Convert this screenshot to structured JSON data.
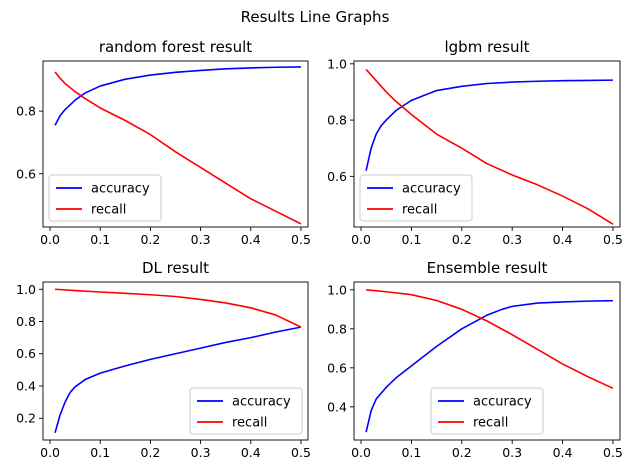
{
  "figure": {
    "suptitle": "Results Line Graphs"
  },
  "chart_data": [
    {
      "type": "line",
      "title": "random forest result",
      "xlabel": "",
      "ylabel": "",
      "xlim": [
        -0.014,
        0.514
      ],
      "ylim": [
        0.43,
        0.96
      ],
      "xticks": [
        0.0,
        0.1,
        0.2,
        0.3,
        0.4,
        0.5
      ],
      "xtick_labels": [
        "0.0",
        "0.1",
        "0.2",
        "0.3",
        "0.4",
        "0.5"
      ],
      "yticks": [
        0.6,
        0.8
      ],
      "ytick_labels": [
        "0.6",
        "0.8"
      ],
      "grid": false,
      "legend": "lower-left",
      "series": [
        {
          "name": "accuracy",
          "color": "#0000ff",
          "x": [
            0.01,
            0.02,
            0.03,
            0.05,
            0.07,
            0.1,
            0.15,
            0.2,
            0.25,
            0.3,
            0.35,
            0.4,
            0.45,
            0.5
          ],
          "y": [
            0.755,
            0.785,
            0.805,
            0.835,
            0.858,
            0.88,
            0.902,
            0.915,
            0.924,
            0.93,
            0.935,
            0.938,
            0.94,
            0.941
          ]
        },
        {
          "name": "recall",
          "color": "#ff0000",
          "x": [
            0.01,
            0.02,
            0.03,
            0.05,
            0.07,
            0.1,
            0.15,
            0.2,
            0.25,
            0.3,
            0.35,
            0.4,
            0.45,
            0.5
          ],
          "y": [
            0.925,
            0.905,
            0.888,
            0.862,
            0.84,
            0.81,
            0.77,
            0.725,
            0.67,
            0.62,
            0.57,
            0.52,
            0.48,
            0.44
          ]
        }
      ]
    },
    {
      "type": "line",
      "title": "lgbm result",
      "xlabel": "",
      "ylabel": "",
      "xlim": [
        -0.014,
        0.514
      ],
      "ylim": [
        0.42,
        1.01
      ],
      "xticks": [
        0.0,
        0.1,
        0.2,
        0.3,
        0.4,
        0.5
      ],
      "xtick_labels": [
        "0.0",
        "0.1",
        "0.2",
        "0.3",
        "0.4",
        "0.5"
      ],
      "yticks": [
        0.6,
        0.8,
        1.0
      ],
      "ytick_labels": [
        "0.6",
        "0.8",
        "1.0"
      ],
      "grid": false,
      "legend": "lower-left",
      "series": [
        {
          "name": "accuracy",
          "color": "#0000ff",
          "x": [
            0.01,
            0.02,
            0.03,
            0.04,
            0.05,
            0.07,
            0.1,
            0.15,
            0.2,
            0.25,
            0.3,
            0.35,
            0.4,
            0.45,
            0.5
          ],
          "y": [
            0.62,
            0.7,
            0.75,
            0.78,
            0.8,
            0.835,
            0.87,
            0.905,
            0.92,
            0.93,
            0.935,
            0.938,
            0.94,
            0.941,
            0.942
          ]
        },
        {
          "name": "recall",
          "color": "#ff0000",
          "x": [
            0.01,
            0.02,
            0.03,
            0.05,
            0.07,
            0.1,
            0.15,
            0.2,
            0.25,
            0.3,
            0.35,
            0.4,
            0.45,
            0.5
          ],
          "y": [
            0.98,
            0.96,
            0.94,
            0.9,
            0.865,
            0.82,
            0.75,
            0.7,
            0.645,
            0.605,
            0.57,
            0.53,
            0.485,
            0.43
          ]
        }
      ]
    },
    {
      "type": "line",
      "title": "DL result",
      "xlabel": "",
      "ylabel": "",
      "xlim": [
        -0.014,
        0.514
      ],
      "ylim": [
        0.065,
        1.045
      ],
      "xticks": [
        0.0,
        0.1,
        0.2,
        0.3,
        0.4,
        0.5
      ],
      "xtick_labels": [
        "0.0",
        "0.1",
        "0.2",
        "0.3",
        "0.4",
        "0.5"
      ],
      "yticks": [
        0.2,
        0.4,
        0.6,
        0.8,
        1.0
      ],
      "ytick_labels": [
        "0.2",
        "0.4",
        "0.6",
        "0.8",
        "1.0"
      ],
      "grid": false,
      "legend": "lower-right",
      "series": [
        {
          "name": "accuracy",
          "color": "#0000ff",
          "x": [
            0.01,
            0.02,
            0.03,
            0.04,
            0.05,
            0.07,
            0.1,
            0.15,
            0.2,
            0.25,
            0.3,
            0.35,
            0.4,
            0.45,
            0.5
          ],
          "y": [
            0.11,
            0.22,
            0.3,
            0.36,
            0.395,
            0.44,
            0.48,
            0.525,
            0.565,
            0.6,
            0.635,
            0.67,
            0.7,
            0.735,
            0.765
          ]
        },
        {
          "name": "recall",
          "color": "#ff0000",
          "x": [
            0.01,
            0.05,
            0.1,
            0.15,
            0.2,
            0.25,
            0.3,
            0.35,
            0.4,
            0.45,
            0.5
          ],
          "y": [
            1.0,
            0.992,
            0.983,
            0.975,
            0.966,
            0.955,
            0.937,
            0.915,
            0.885,
            0.84,
            0.765
          ]
        }
      ]
    },
    {
      "type": "line",
      "title": "Ensemble result",
      "xlabel": "",
      "ylabel": "",
      "xlim": [
        -0.014,
        0.514
      ],
      "ylim": [
        0.23,
        1.04
      ],
      "xticks": [
        0.0,
        0.1,
        0.2,
        0.3,
        0.4,
        0.5
      ],
      "xtick_labels": [
        "0.0",
        "0.1",
        "0.2",
        "0.3",
        "0.4",
        "0.5"
      ],
      "yticks": [
        0.4,
        0.6,
        0.8,
        1.0
      ],
      "ytick_labels": [
        "0.4",
        "0.6",
        "0.8",
        "1.0"
      ],
      "grid": false,
      "legend": "lower-center",
      "series": [
        {
          "name": "accuracy",
          "color": "#0000ff",
          "x": [
            0.01,
            0.02,
            0.03,
            0.05,
            0.07,
            0.1,
            0.15,
            0.2,
            0.25,
            0.28,
            0.3,
            0.35,
            0.4,
            0.45,
            0.5
          ],
          "y": [
            0.27,
            0.38,
            0.44,
            0.5,
            0.55,
            0.61,
            0.71,
            0.8,
            0.87,
            0.9,
            0.915,
            0.932,
            0.938,
            0.942,
            0.944
          ]
        },
        {
          "name": "recall",
          "color": "#ff0000",
          "x": [
            0.01,
            0.05,
            0.1,
            0.15,
            0.2,
            0.25,
            0.3,
            0.35,
            0.4,
            0.45,
            0.5
          ],
          "y": [
            1.0,
            0.99,
            0.975,
            0.945,
            0.9,
            0.84,
            0.77,
            0.695,
            0.62,
            0.555,
            0.495
          ]
        }
      ]
    }
  ]
}
